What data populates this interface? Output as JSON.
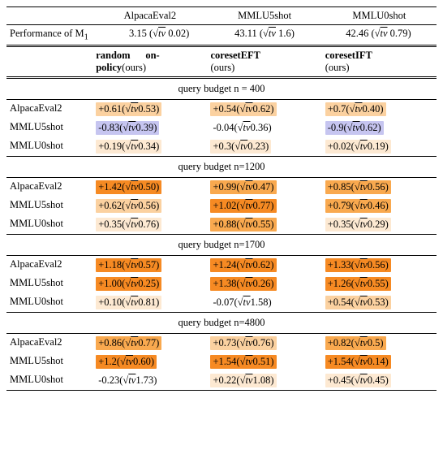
{
  "header": {
    "cols": [
      "AlpacaEval2",
      "MMLU5shot",
      "MMLU0shot"
    ],
    "perf_label": "Performance of M",
    "perf_sub": "1",
    "perf_vals": [
      {
        "v": "3.15",
        "s": "0.02"
      },
      {
        "v": "43.11",
        "s": "1.6"
      },
      {
        "v": "42.46",
        "s": "0.79"
      }
    ]
  },
  "methods": [
    {
      "line1": "random",
      "line1b": "on-",
      "line2": "policy",
      "sub": "(ours)"
    },
    {
      "line1": "coresetEFT",
      "line2": "(ours)"
    },
    {
      "line1": "coresetIFT",
      "line2": "(ours)"
    }
  ],
  "rows_labels": [
    "AlpacaEval2",
    "MMLU5shot",
    "MMLU0shot"
  ],
  "sections": [
    {
      "title": "query budget n = 400",
      "cells": [
        [
          {
            "v": "+0.61",
            "s": "0.53",
            "bg": "#fbd1a0"
          },
          {
            "v": "+0.54",
            "s": "0.62",
            "bg": "#fbd1a0"
          },
          {
            "v": "+0.7",
            "s": "0.40",
            "bg": "#fbd1a0"
          }
        ],
        [
          {
            "v": "-0.83",
            "s": "0.39",
            "bg": "#c6c5f0"
          },
          {
            "v": "-0.04",
            "s": "0.36",
            "bg": "#ffffff"
          },
          {
            "v": "-0.9",
            "s": "0.62",
            "bg": "#c6c5f0"
          }
        ],
        [
          {
            "v": "+0.19",
            "s": "0.34",
            "bg": "#fde9d2"
          },
          {
            "v": "+0.3",
            "s": "0.23",
            "bg": "#fde9d2"
          },
          {
            "v": "+0.02",
            "s": "0.19",
            "bg": "#fde9d2"
          }
        ]
      ]
    },
    {
      "title": "query budget n=1200",
      "cells": [
        [
          {
            "v": "+1.42",
            "s": "0.50",
            "bg": "#f68a23"
          },
          {
            "v": "+0.99",
            "s": "0.47",
            "bg": "#f9a94f"
          },
          {
            "v": "+0.85",
            "s": "0.56",
            "bg": "#f9a94f"
          }
        ],
        [
          {
            "v": "+0.62",
            "s": "0.56",
            "bg": "#fbd1a0"
          },
          {
            "v": "+1.02",
            "s": "0.77",
            "bg": "#f68a23"
          },
          {
            "v": "+0.79",
            "s": "0.46",
            "bg": "#f9a94f"
          }
        ],
        [
          {
            "v": "+0.35",
            "s": "0.76",
            "bg": "#fde9d2"
          },
          {
            "v": "+0.88",
            "s": "0.55",
            "bg": "#f9a94f"
          },
          {
            "v": "+0.35",
            "s": "0.29",
            "bg": "#fde9d2"
          }
        ]
      ]
    },
    {
      "title": "query budget n=1700",
      "cells": [
        [
          {
            "v": "+1.18",
            "s": "0.57",
            "bg": "#f68a23"
          },
          {
            "v": "+1.24",
            "s": "0.62",
            "bg": "#f68a23"
          },
          {
            "v": "+1.33",
            "s": "0.56",
            "bg": "#f68a23"
          }
        ],
        [
          {
            "v": "+1.00",
            "s": "0.25",
            "bg": "#f68a23"
          },
          {
            "v": "+1.38",
            "s": "0.26",
            "bg": "#f68a23"
          },
          {
            "v": "+1.26",
            "s": "0.55",
            "bg": "#f68a23"
          }
        ],
        [
          {
            "v": "+0.10",
            "s": "0.81",
            "bg": "#fde9d2"
          },
          {
            "v": "-0.07",
            "s": "1.58",
            "bg": "#ffffff"
          },
          {
            "v": "+0.54",
            "s": "0.53",
            "bg": "#fbd1a0"
          }
        ]
      ]
    },
    {
      "title": "query budget n=4800",
      "cells": [
        [
          {
            "v": "+0.86",
            "s": "0.77",
            "bg": "#f9a94f"
          },
          {
            "v": "+0.73",
            "s": "0.76",
            "bg": "#fbd1a0"
          },
          {
            "v": "+0.82",
            "s": "0.5",
            "bg": "#f9a94f"
          }
        ],
        [
          {
            "v": "+1.2",
            "s": "0.60",
            "bg": "#f68a23"
          },
          {
            "v": "+1.54",
            "s": "0.51",
            "bg": "#f68a23"
          },
          {
            "v": "+1.54",
            "s": "0.14",
            "bg": "#f68a23"
          }
        ],
        [
          {
            "v": "-0.23",
            "s": "1.73",
            "bg": "#ffffff"
          },
          {
            "v": "+0.22",
            "s": "1.08",
            "bg": "#fde9d2"
          },
          {
            "v": "+0.45",
            "s": "0.45",
            "bg": "#fde9d2"
          }
        ]
      ]
    }
  ],
  "sqrt_tv": "tv"
}
